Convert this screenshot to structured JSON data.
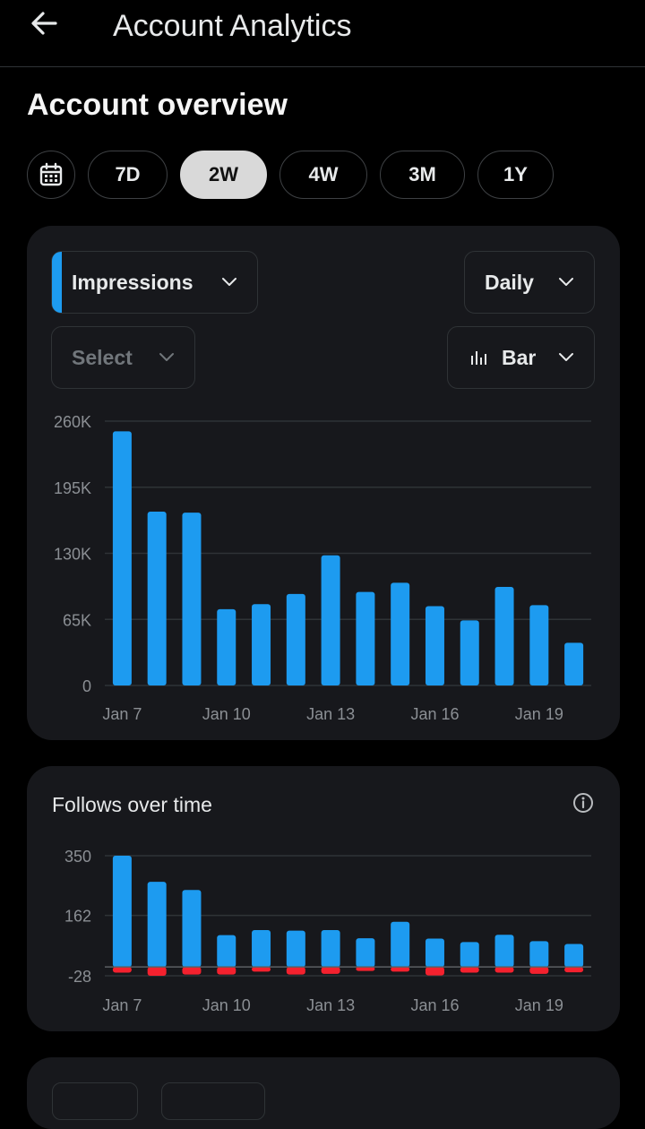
{
  "app": {
    "title": "Account Analytics"
  },
  "overview": {
    "title": "Account overview"
  },
  "ranges": [
    "7D",
    "2W",
    "4W",
    "3M",
    "1Y"
  ],
  "selected_range": "2W",
  "impressions_card": {
    "metric_label": "Impressions",
    "interval_label": "Daily",
    "compare_placeholder": "Select",
    "chart_style_label": "Bar"
  },
  "follows_card": {
    "title": "Follows over time"
  },
  "colors": {
    "accent": "#1d9bf0",
    "negative": "#f4212e",
    "card": "#17181c",
    "selected_pill": "#d9d9d9"
  },
  "chart_data": [
    {
      "type": "bar",
      "categories": [
        "Jan 7",
        "Jan 8",
        "Jan 9",
        "Jan 10",
        "Jan 11",
        "Jan 12",
        "Jan 13",
        "Jan 14",
        "Jan 15",
        "Jan 16",
        "Jan 17",
        "Jan 18",
        "Jan 19",
        "Jan 20"
      ],
      "x_tick_labels": [
        "Jan 7",
        "Jan 10",
        "Jan 13",
        "Jan 16",
        "Jan 19"
      ],
      "y_ticks": [
        "260K",
        "195K",
        "130K",
        "65K",
        "0"
      ],
      "ylim": [
        0,
        260000
      ],
      "values": [
        250000,
        171000,
        170000,
        75000,
        80000,
        90000,
        128000,
        92000,
        101000,
        78000,
        64000,
        97000,
        79000,
        42000
      ],
      "grid": true
    },
    {
      "type": "bar",
      "categories": [
        "Jan 7",
        "Jan 8",
        "Jan 9",
        "Jan 10",
        "Jan 11",
        "Jan 12",
        "Jan 13",
        "Jan 14",
        "Jan 15",
        "Jan 16",
        "Jan 17",
        "Jan 18",
        "Jan 19",
        "Jan 20"
      ],
      "x_tick_labels": [
        "Jan 7",
        "Jan 10",
        "Jan 13",
        "Jan 16",
        "Jan 19"
      ],
      "y_ticks": [
        "350",
        "162",
        "-28"
      ],
      "ylim": [
        -28,
        350
      ],
      "series": [
        {
          "values": [
            350,
            268,
            242,
            100,
            116,
            114,
            116,
            90,
            142,
            89,
            78,
            101,
            81,
            72
          ]
        },
        {
          "values": [
            -18,
            -28,
            -24,
            -24,
            -15,
            -24,
            -22,
            -13,
            -15,
            -27,
            -18,
            -18,
            -22,
            -17
          ]
        }
      ],
      "grid": true
    }
  ]
}
